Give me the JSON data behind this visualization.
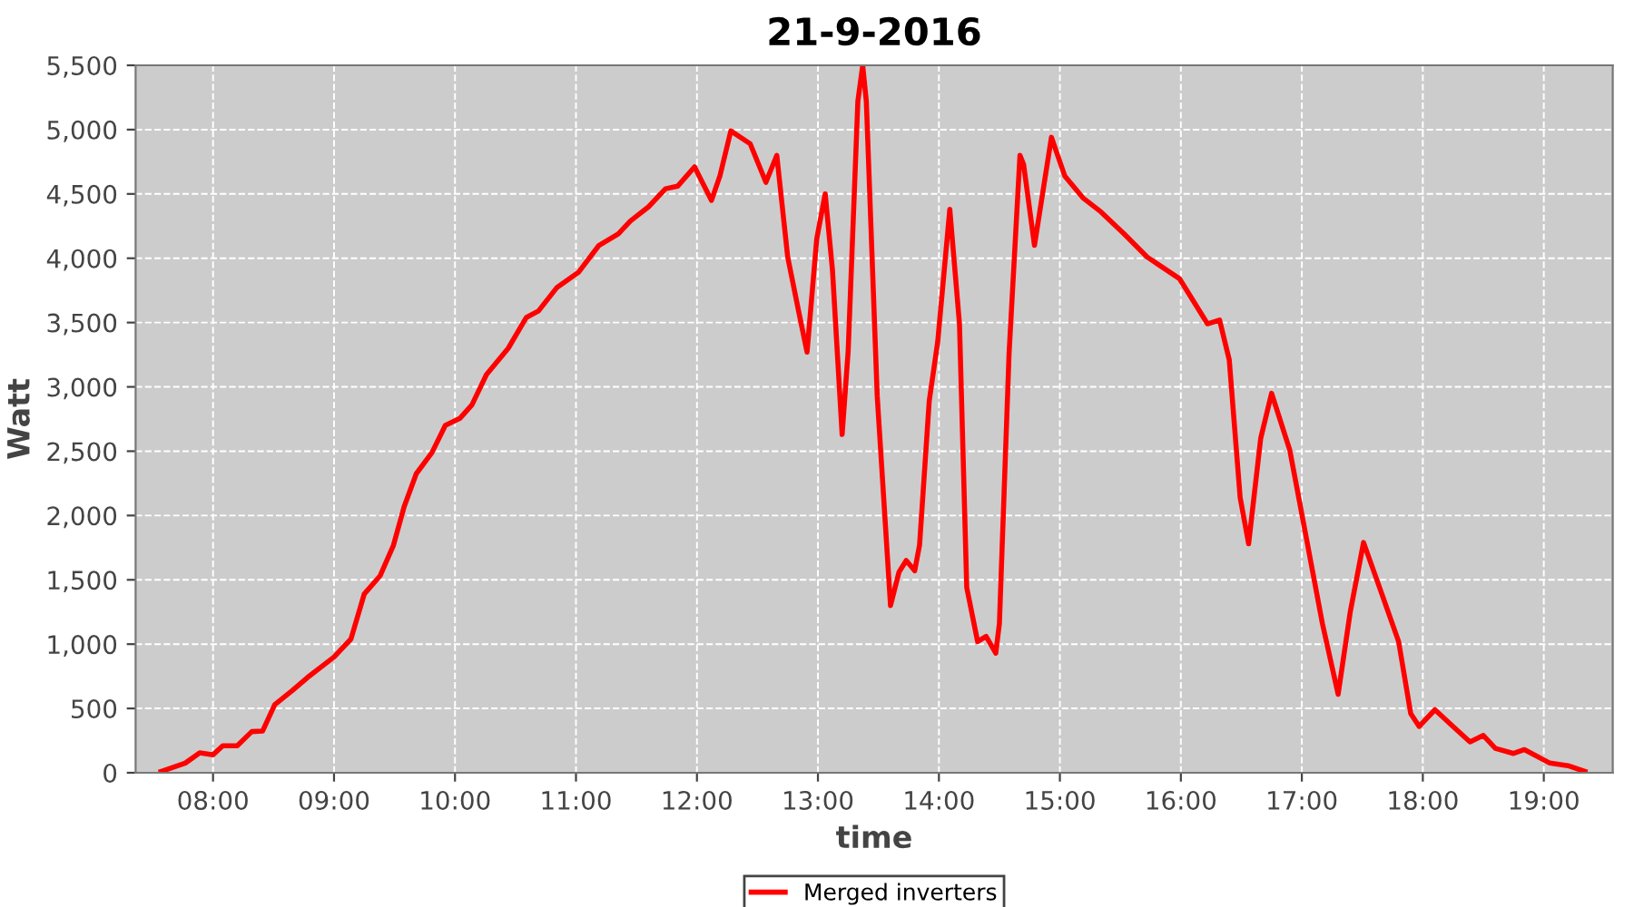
{
  "chart_data": {
    "type": "line",
    "title": "21-9-2016",
    "xlabel": "time",
    "ylabel": "Watt",
    "x": [
      7.57,
      7.77,
      7.89,
      8.0,
      8.08,
      8.2,
      8.32,
      8.41,
      8.51,
      8.65,
      8.78,
      9.0,
      9.14,
      9.25,
      9.38,
      9.49,
      9.58,
      9.68,
      9.81,
      9.92,
      10.04,
      10.14,
      10.26,
      10.44,
      10.59,
      10.69,
      10.84,
      11.02,
      11.19,
      11.35,
      11.45,
      11.6,
      11.74,
      11.84,
      11.98,
      12.12,
      12.19,
      12.28,
      12.44,
      12.57,
      12.66,
      12.75,
      12.84,
      12.91,
      12.99,
      13.06,
      13.12,
      13.2,
      13.25,
      13.33,
      13.37,
      13.4,
      13.49,
      13.6,
      13.67,
      13.73,
      13.8,
      13.84,
      13.92,
      13.99,
      14.09,
      14.17,
      14.23,
      14.32,
      14.39,
      14.47,
      14.5,
      14.58,
      14.67,
      14.7,
      14.79,
      14.93,
      15.04,
      15.19,
      15.34,
      15.53,
      15.72,
      15.99,
      16.22,
      16.32,
      16.4,
      16.49,
      16.56,
      16.66,
      16.75,
      16.9,
      17.04,
      17.17,
      17.3,
      17.4,
      17.51,
      17.65,
      17.8,
      17.9,
      17.97,
      18.1,
      18.25,
      18.39,
      18.5,
      18.6,
      18.75,
      18.84,
      19.05,
      19.2,
      19.34
    ],
    "series": [
      {
        "name": "Merged inverters",
        "color": "#ff0000",
        "values": [
          10,
          75,
          155,
          140,
          210,
          210,
          320,
          325,
          530,
          635,
          740,
          900,
          1040,
          1390,
          1530,
          1765,
          2070,
          2325,
          2490,
          2700,
          2755,
          2860,
          3095,
          3300,
          3540,
          3590,
          3770,
          3890,
          4100,
          4190,
          4290,
          4400,
          4540,
          4560,
          4710,
          4450,
          4640,
          4990,
          4890,
          4590,
          4800,
          4010,
          3590,
          3270,
          4150,
          4500,
          3910,
          2630,
          3280,
          5220,
          5500,
          5220,
          2930,
          1300,
          1560,
          1650,
          1570,
          1770,
          2890,
          3350,
          4380,
          3490,
          1440,
          1020,
          1060,
          930,
          1160,
          3260,
          4800,
          4730,
          4100,
          4940,
          4640,
          4470,
          4360,
          4190,
          4010,
          3840,
          3490,
          3520,
          3210,
          2140,
          1780,
          2600,
          2950,
          2510,
          1810,
          1160,
          610,
          1250,
          1790,
          1420,
          1020,
          460,
          360,
          490,
          360,
          240,
          290,
          190,
          150,
          180,
          75,
          55,
          10
        ]
      }
    ],
    "xlim": [
      7.36,
      19.57
    ],
    "ylim": [
      0,
      5500
    ],
    "xticks": [
      {
        "value": 8,
        "label": "08:00"
      },
      {
        "value": 9,
        "label": "09:00"
      },
      {
        "value": 10,
        "label": "10:00"
      },
      {
        "value": 11,
        "label": "11:00"
      },
      {
        "value": 12,
        "label": "12:00"
      },
      {
        "value": 13,
        "label": "13:00"
      },
      {
        "value": 14,
        "label": "14:00"
      },
      {
        "value": 15,
        "label": "15:00"
      },
      {
        "value": 16,
        "label": "16:00"
      },
      {
        "value": 17,
        "label": "17:00"
      },
      {
        "value": 18,
        "label": "18:00"
      },
      {
        "value": 19,
        "label": "19:00"
      }
    ],
    "yticks": [
      0,
      500,
      {
        "value": 1000,
        "label": "1,000"
      },
      {
        "value": 1500,
        "label": "1,500"
      },
      {
        "value": 2000,
        "label": "2,000"
      },
      {
        "value": 2500,
        "label": "2,500"
      },
      {
        "value": 3000,
        "label": "3,000"
      },
      {
        "value": 3500,
        "label": "3,500"
      },
      {
        "value": 4000,
        "label": "4,000"
      },
      {
        "value": 4500,
        "label": "4,500"
      },
      {
        "value": 5000,
        "label": "5,000"
      },
      {
        "value": 5500,
        "label": "5,500"
      }
    ],
    "grid": true,
    "legend": "bottom",
    "marker": "none",
    "line_style": "solid"
  }
}
